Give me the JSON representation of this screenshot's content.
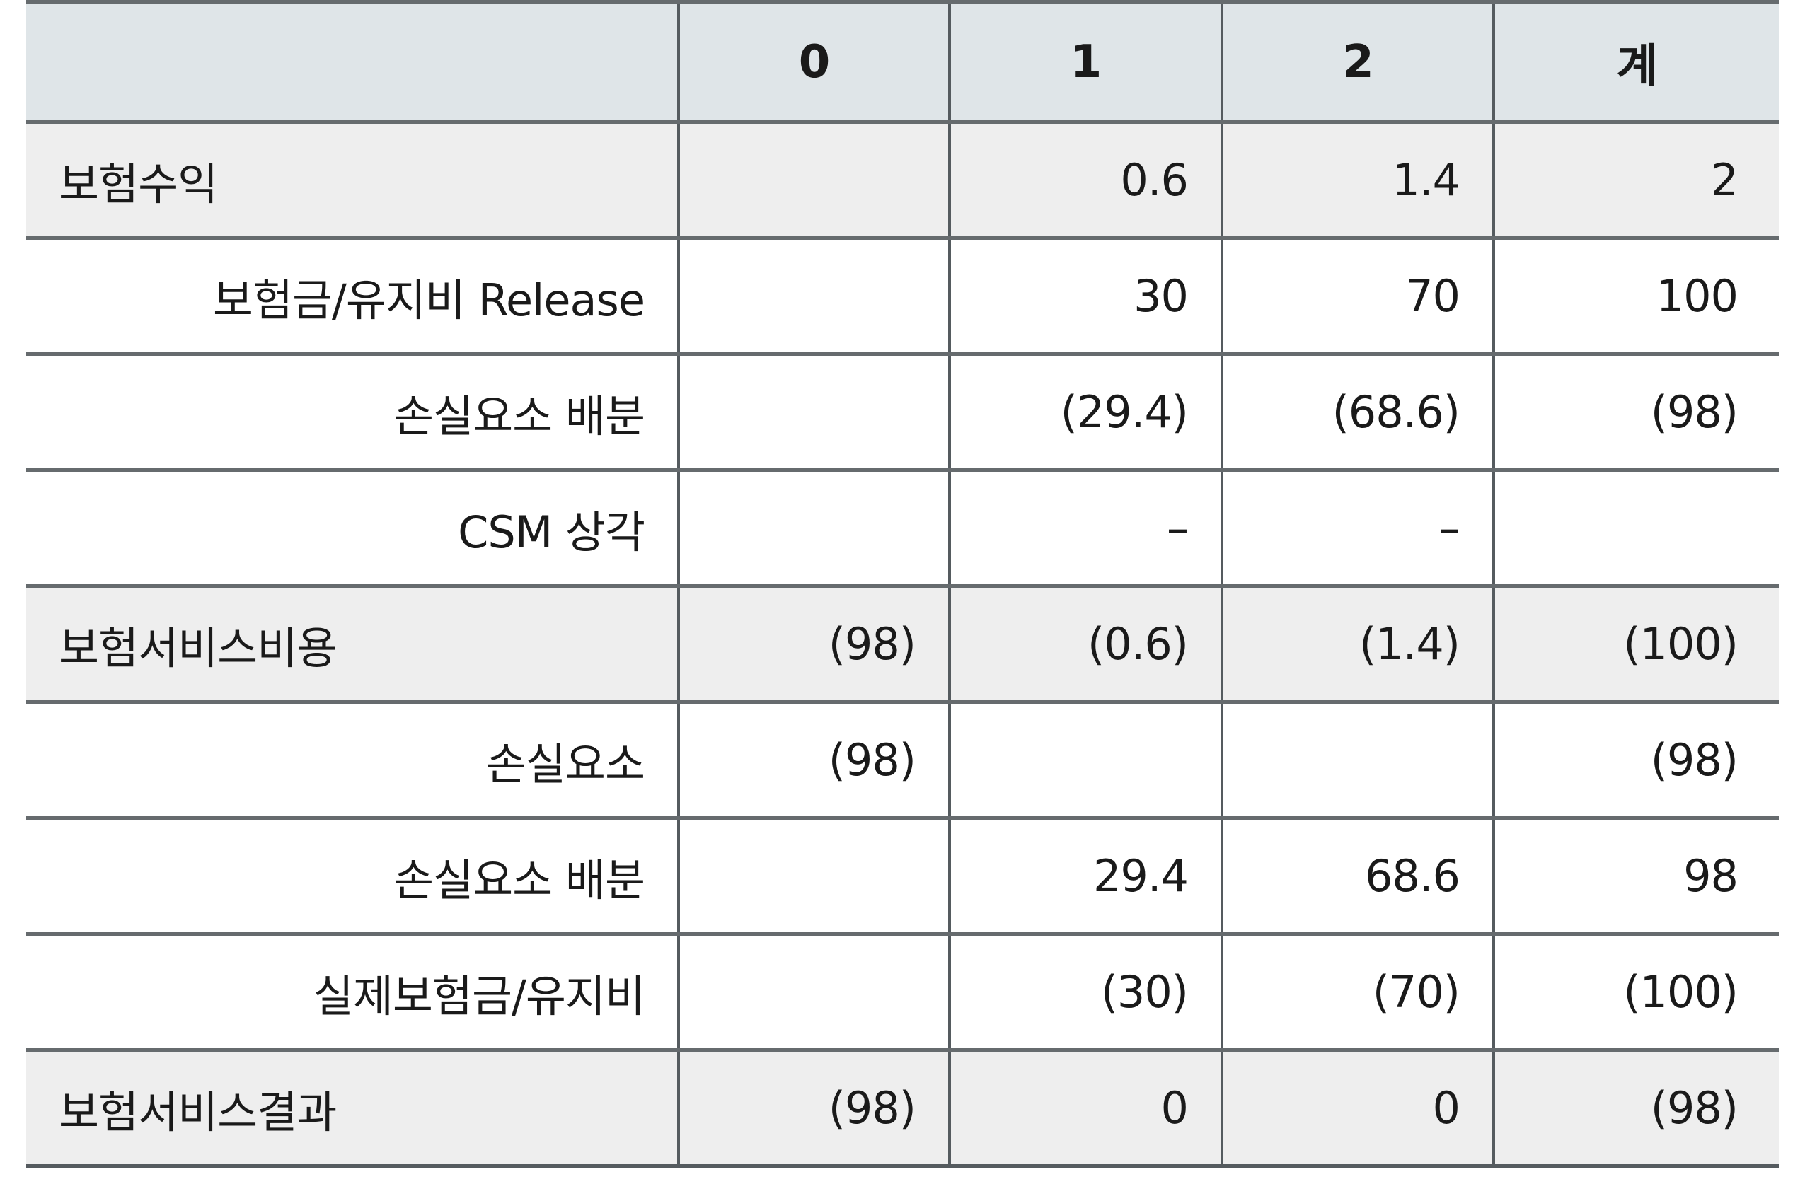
{
  "columns": [
    "",
    "0",
    "1",
    "2",
    "계"
  ],
  "rows": [
    {
      "kind": "main",
      "label": "보험수익",
      "values": [
        "",
        "0.6",
        "1.4",
        "2"
      ]
    },
    {
      "kind": "sub",
      "label": "보험금/유지비 Release",
      "values": [
        "",
        "30",
        "70",
        "100"
      ]
    },
    {
      "kind": "sub",
      "label": "손실요소 배분",
      "values": [
        "",
        "(29.4)",
        "(68.6)",
        "(98)"
      ]
    },
    {
      "kind": "sub",
      "label": "CSM 상각",
      "values": [
        "",
        "–",
        "–",
        ""
      ]
    },
    {
      "kind": "main",
      "label": "보험서비스비용",
      "values": [
        "(98)",
        "(0.6)",
        "(1.4)",
        "(100)"
      ]
    },
    {
      "kind": "sub",
      "label": "손실요소",
      "values": [
        "(98)",
        "",
        "",
        "(98)"
      ]
    },
    {
      "kind": "sub",
      "label": "손실요소 배분",
      "values": [
        "",
        "29.4",
        "68.6",
        "98"
      ]
    },
    {
      "kind": "sub",
      "label": "실제보험금/유지비",
      "values": [
        "",
        "(30)",
        "(70)",
        "(100)"
      ]
    },
    {
      "kind": "main",
      "label": "보험서비스결과",
      "values": [
        "(98)",
        "0",
        "0",
        "(98)"
      ]
    }
  ],
  "colors": {
    "header_bg": "#dfe5e8",
    "main_row_bg": "#eeeeee",
    "sub_row_bg": "#ffffff",
    "border": "#666b6e"
  }
}
